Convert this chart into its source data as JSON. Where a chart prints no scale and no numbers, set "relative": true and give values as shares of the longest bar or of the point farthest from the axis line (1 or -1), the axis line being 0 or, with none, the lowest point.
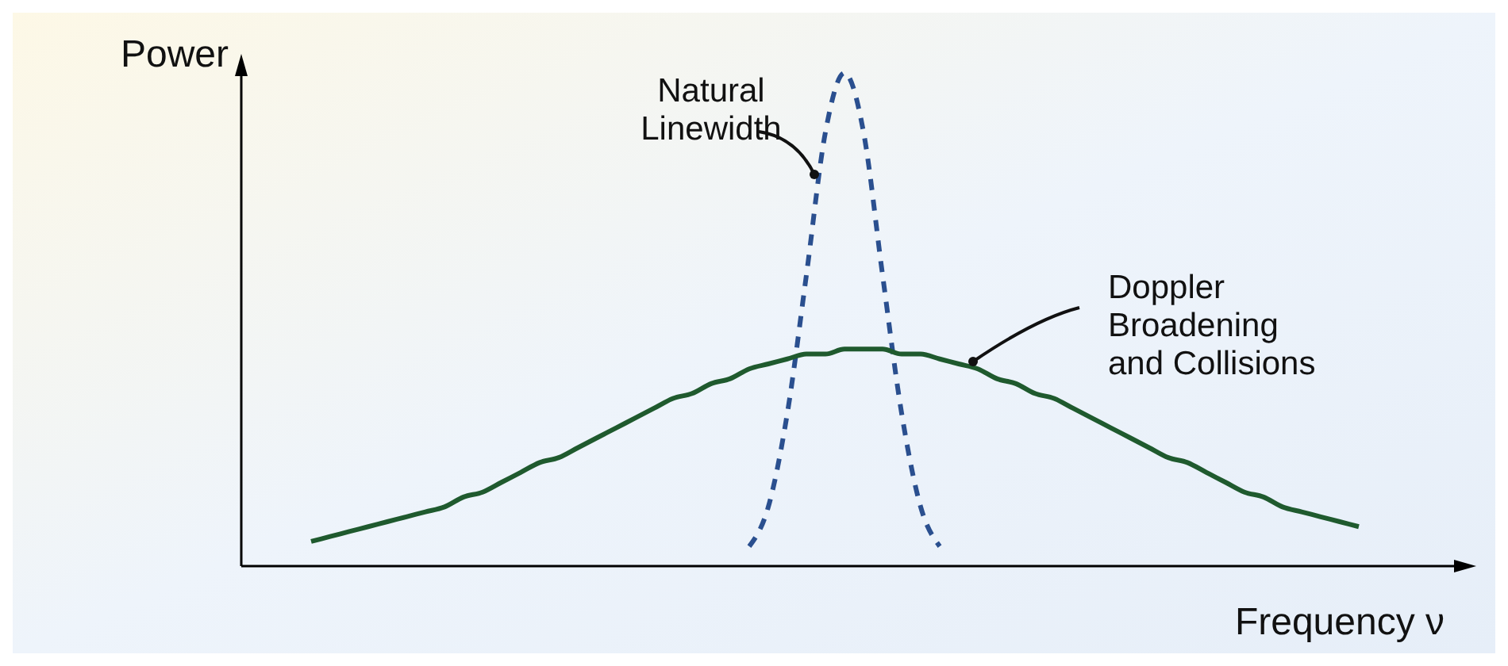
{
  "chart_data": {
    "type": "line",
    "relative": true,
    "xlabel": "Frequency ν",
    "ylabel": "Power",
    "legend": false,
    "marker": "none",
    "categories": [
      null,
      null,
      null,
      null,
      null,
      null,
      null,
      null,
      null,
      null,
      null,
      null,
      null,
      null,
      null,
      null,
      null,
      null,
      null,
      null,
      null,
      null,
      null,
      null,
      null,
      null,
      null,
      null,
      null,
      null,
      null,
      null,
      null,
      null,
      null,
      null,
      null,
      null,
      null,
      null,
      null,
      null,
      null,
      null,
      null,
      null,
      null,
      null,
      null,
      null,
      null,
      null,
      null,
      null,
      null,
      null,
      null,
      null,
      null,
      null,
      null,
      null,
      null
    ],
    "series": [
      {
        "name": "Natural Linewidth",
        "color": "#2a4f8f",
        "line_style": "dashed",
        "values": [
          null,
          null,
          null,
          null,
          null,
          null,
          null,
          null,
          null,
          null,
          null,
          null,
          null,
          null,
          null,
          null,
          null,
          null,
          null,
          null,
          null,
          null,
          null,
          null,
          null,
          null,
          0.04,
          0.12,
          0.31,
          0.59,
          0.88,
          1,
          0.88,
          0.59,
          0.31,
          0.12,
          0.04,
          null,
          null,
          null,
          null,
          null,
          null,
          null,
          null,
          null,
          null,
          null,
          null,
          null,
          null,
          null,
          null,
          null,
          null,
          null,
          null,
          null,
          null,
          null,
          null,
          null,
          null
        ]
      },
      {
        "name": "Doppler Broadening and Collisions",
        "color": "#1f5a2e",
        "line_style": "solid",
        "values": [
          null,
          null,
          null,
          0.05,
          0.06,
          0.07,
          0.08,
          0.09,
          0.1,
          0.11,
          0.12,
          0.14,
          0.15,
          0.17,
          0.19,
          0.21,
          0.22,
          0.24,
          0.26,
          0.28,
          0.3,
          0.32,
          0.34,
          0.35,
          0.37,
          0.38,
          0.4,
          0.41,
          0.42,
          0.43,
          0.43,
          0.44,
          0.44,
          0.44,
          0.43,
          0.43,
          0.42,
          0.41,
          0.4,
          0.38,
          0.37,
          0.35,
          0.34,
          0.32,
          0.3,
          0.28,
          0.26,
          0.24,
          0.22,
          0.21,
          0.19,
          0.17,
          0.15,
          0.14,
          0.12,
          0.11,
          0.1,
          0.09,
          0.08,
          null,
          null,
          null,
          null
        ]
      }
    ]
  }
}
